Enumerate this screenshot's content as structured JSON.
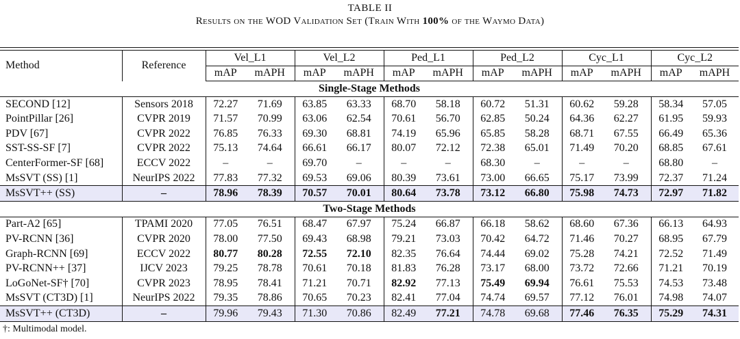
{
  "caption": {
    "label": "TABLE II",
    "title_pre": "Results on the WOD Validation Set (Train With ",
    "title_bold": "100%",
    "title_post": " of the Waymo Data)"
  },
  "header": {
    "method": "Method",
    "reference": "Reference",
    "groups": [
      "Vel_L1",
      "Vel_L2",
      "Ped_L1",
      "Ped_L2",
      "Cyc_L1",
      "Cyc_L2"
    ],
    "sub": [
      "mAP",
      "mAPH"
    ]
  },
  "sections": [
    {
      "title": "Single-Stage Methods",
      "rows": [
        {
          "method": "SECOND [12]",
          "ref": "Sensors 2018",
          "vals": [
            "72.27",
            "71.69",
            "63.85",
            "63.33",
            "68.70",
            "58.18",
            "60.72",
            "51.31",
            "60.62",
            "59.28",
            "58.34",
            "57.05"
          ],
          "bold": [],
          "hl": false
        },
        {
          "method": "PointPillar [26]",
          "ref": "CVPR 2019",
          "vals": [
            "71.57",
            "70.99",
            "63.06",
            "62.54",
            "70.61",
            "56.70",
            "62.85",
            "50.24",
            "64.36",
            "62.27",
            "61.95",
            "59.93"
          ],
          "bold": [],
          "hl": false
        },
        {
          "method": "PDV [67]",
          "ref": "CVPR 2022",
          "vals": [
            "76.85",
            "76.33",
            "69.30",
            "68.81",
            "74.19",
            "65.96",
            "65.85",
            "58.28",
            "68.71",
            "67.55",
            "66.49",
            "65.36"
          ],
          "bold": [],
          "hl": false
        },
        {
          "method": "SST-SS-SF [7]",
          "ref": "CVPR 2022",
          "vals": [
            "75.13",
            "74.64",
            "66.61",
            "66.17",
            "80.07",
            "72.12",
            "72.38",
            "65.01",
            "71.49",
            "70.20",
            "68.85",
            "67.61"
          ],
          "bold": [],
          "hl": false
        },
        {
          "method": "CenterFormer-SF [68]",
          "ref": "ECCV 2022",
          "vals": [
            "–",
            "–",
            "69.70",
            "–",
            "–",
            "–",
            "68.30",
            "–",
            "–",
            "–",
            "68.80",
            "–"
          ],
          "bold": [],
          "hl": false
        },
        {
          "method": "MsSVT (SS) [1]",
          "ref": "NeurIPS 2022",
          "vals": [
            "77.83",
            "77.32",
            "69.53",
            "69.06",
            "80.39",
            "73.61",
            "73.00",
            "66.65",
            "75.17",
            "73.99",
            "72.37",
            "71.24"
          ],
          "bold": [],
          "hl": false
        },
        {
          "method": "MsSVT++ (SS)",
          "ref": "–",
          "vals": [
            "78.96",
            "78.39",
            "70.57",
            "70.01",
            "80.64",
            "73.78",
            "73.12",
            "66.80",
            "75.98",
            "74.73",
            "72.97",
            "71.82"
          ],
          "bold": [
            0,
            1,
            2,
            3,
            4,
            5,
            6,
            7,
            8,
            9,
            10,
            11
          ],
          "hl": true
        }
      ]
    },
    {
      "title": "Two-Stage Methods",
      "rows": [
        {
          "method": "Part-A2 [65]",
          "ref": "TPAMI 2020",
          "vals": [
            "77.05",
            "76.51",
            "68.47",
            "67.97",
            "75.24",
            "66.87",
            "66.18",
            "58.62",
            "68.60",
            "67.36",
            "66.13",
            "64.93"
          ],
          "bold": [],
          "hl": false
        },
        {
          "method": "PV-RCNN [36]",
          "ref": "CVPR 2020",
          "vals": [
            "78.00",
            "77.50",
            "69.43",
            "68.98",
            "79.21",
            "73.03",
            "70.42",
            "64.72",
            "71.46",
            "70.27",
            "68.95",
            "67.79"
          ],
          "bold": [],
          "hl": false
        },
        {
          "method": "Graph-RCNN [69]",
          "ref": "ECCV 2022",
          "vals": [
            "80.77",
            "80.28",
            "72.55",
            "72.10",
            "82.35",
            "76.64",
            "74.44",
            "69.02",
            "75.28",
            "74.21",
            "72.52",
            "71.49"
          ],
          "bold": [
            0,
            1,
            2,
            3
          ],
          "hl": false
        },
        {
          "method": "PV-RCNN++ [37]",
          "ref": "IJCV 2023",
          "vals": [
            "79.25",
            "78.78",
            "70.61",
            "70.18",
            "81.83",
            "76.28",
            "73.17",
            "68.00",
            "73.72",
            "72.66",
            "71.21",
            "70.19"
          ],
          "bold": [],
          "hl": false
        },
        {
          "method": "LoGoNet-SF† [70]",
          "ref": "CVPR 2023",
          "vals": [
            "78.95",
            "78.41",
            "71.21",
            "70.71",
            "82.92",
            "77.13",
            "75.49",
            "69.94",
            "76.61",
            "75.53",
            "74.53",
            "73.48"
          ],
          "bold": [
            4,
            6,
            7
          ],
          "hl": false
        },
        {
          "method": "MsSVT (CT3D) [1]",
          "ref": "NeurIPS 2022",
          "vals": [
            "79.35",
            "78.86",
            "70.65",
            "70.23",
            "82.41",
            "77.04",
            "74.74",
            "69.57",
            "77.12",
            "76.01",
            "74.98",
            "74.07"
          ],
          "bold": [],
          "hl": false
        },
        {
          "method": "MsSVT++ (CT3D)",
          "ref": "–",
          "vals": [
            "79.96",
            "79.43",
            "71.30",
            "70.86",
            "82.49",
            "77.21",
            "74.78",
            "69.68",
            "77.46",
            "76.35",
            "75.29",
            "74.31"
          ],
          "bold": [
            5,
            8,
            9,
            10,
            11
          ],
          "hl": true
        }
      ]
    }
  ],
  "footnote": "†: Multimodal model."
}
